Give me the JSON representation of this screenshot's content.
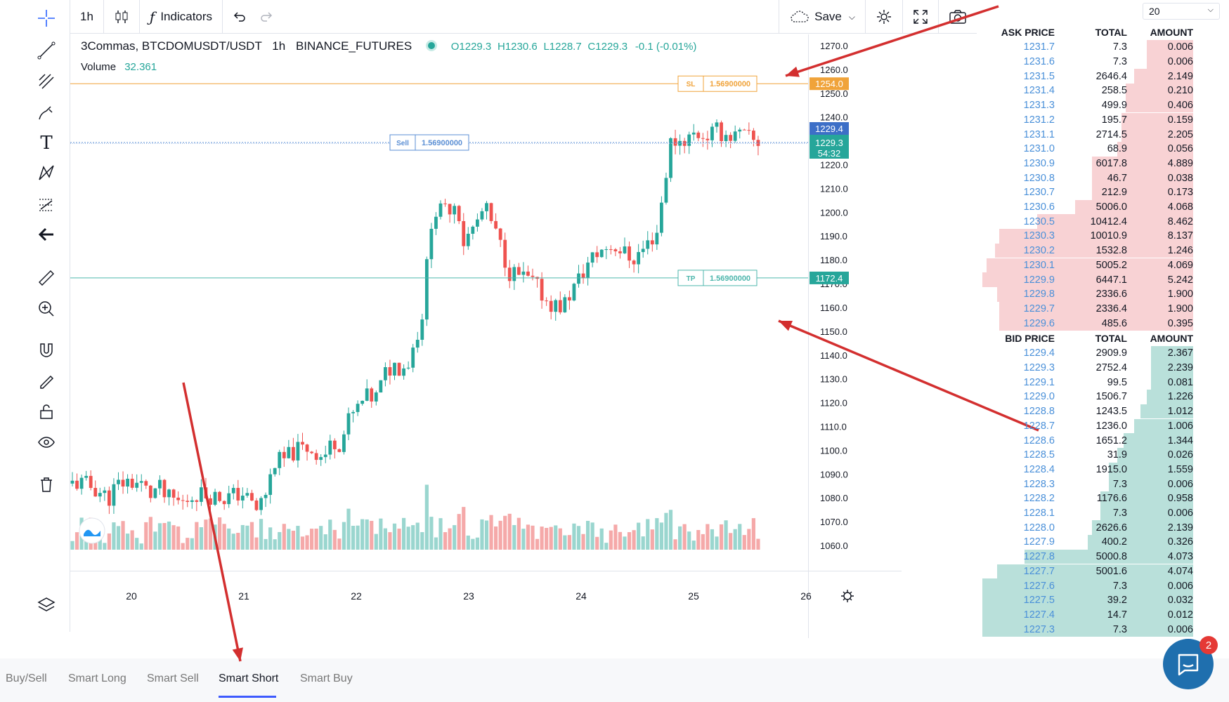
{
  "toolbar": {
    "interval": "1h",
    "indicators": "Indicators",
    "save": "Save",
    "depth": "20"
  },
  "legend": {
    "symbol": "3Commas, BTCDOMUSDT/USDT",
    "interval": "1h",
    "exchange": "BINANCE_FUTURES",
    "open": "O1229.3",
    "high": "H1230.6",
    "low": "L1228.7",
    "close": "C1229.3",
    "change": "-0.1 (-0.01%)",
    "volume_label": "Volume",
    "volume_value": "32.361"
  },
  "price_axis": {
    "ticks": [
      "1270.0",
      "1260.0",
      "1250.0",
      "1240.0",
      "1230.0",
      "1220.0",
      "1210.0",
      "1200.0",
      "1190.0",
      "1180.0",
      "1170.0",
      "1160.0",
      "1150.0",
      "1140.0",
      "1130.0",
      "1120.0",
      "1110.0",
      "1100.0",
      "1090.0",
      "1080.0",
      "1070.0",
      "1060.0"
    ],
    "sl_price": "1254.0",
    "ask_price": "1229.4",
    "last_price": "1229.3",
    "countdown": "54:32",
    "tp_price": "1172.4"
  },
  "time_axis": {
    "ticks": [
      "20",
      "21",
      "22",
      "23",
      "24",
      "25",
      "26"
    ]
  },
  "order_lines": {
    "sl_label": "SL",
    "sl_value": "1.56900000",
    "sell_label": "Sell",
    "sell_value": "1.56900000",
    "tp_label": "TP",
    "tp_value": "1.56900000"
  },
  "orderbook": {
    "ask_headers": [
      "ASK PRICE",
      "TOTAL",
      "AMOUNT"
    ],
    "bid_headers": [
      "BID PRICE",
      "TOTAL",
      "AMOUNT"
    ],
    "asks": [
      [
        "1231.7",
        "7.3",
        "0.006"
      ],
      [
        "1231.6",
        "7.3",
        "0.006"
      ],
      [
        "1231.5",
        "2646.4",
        "2.149"
      ],
      [
        "1231.4",
        "258.5",
        "0.210"
      ],
      [
        "1231.3",
        "499.9",
        "0.406"
      ],
      [
        "1231.2",
        "195.7",
        "0.159"
      ],
      [
        "1231.1",
        "2714.5",
        "2.205"
      ],
      [
        "1231.0",
        "68.9",
        "0.056"
      ],
      [
        "1230.9",
        "6017.8",
        "4.889"
      ],
      [
        "1230.8",
        "46.7",
        "0.038"
      ],
      [
        "1230.7",
        "212.9",
        "0.173"
      ],
      [
        "1230.6",
        "5006.0",
        "4.068"
      ],
      [
        "1230.5",
        "10412.4",
        "8.462"
      ],
      [
        "1230.3",
        "10010.9",
        "8.137"
      ],
      [
        "1230.2",
        "1532.8",
        "1.246"
      ],
      [
        "1230.1",
        "5005.2",
        "4.069"
      ],
      [
        "1229.9",
        "6447.1",
        "5.242"
      ],
      [
        "1229.8",
        "2336.6",
        "1.900"
      ],
      [
        "1229.7",
        "2336.4",
        "1.900"
      ],
      [
        "1229.6",
        "485.6",
        "0.395"
      ]
    ],
    "bids": [
      [
        "1229.4",
        "2909.9",
        "2.367"
      ],
      [
        "1229.3",
        "2752.4",
        "2.239"
      ],
      [
        "1229.1",
        "99.5",
        "0.081"
      ],
      [
        "1229.0",
        "1506.7",
        "1.226"
      ],
      [
        "1228.8",
        "1243.5",
        "1.012"
      ],
      [
        "1228.7",
        "1236.0",
        "1.006"
      ],
      [
        "1228.6",
        "1651.2",
        "1.344"
      ],
      [
        "1228.5",
        "31.9",
        "0.026"
      ],
      [
        "1228.4",
        "1915.0",
        "1.559"
      ],
      [
        "1228.3",
        "7.3",
        "0.006"
      ],
      [
        "1228.2",
        "1176.6",
        "0.958"
      ],
      [
        "1228.1",
        "7.3",
        "0.006"
      ],
      [
        "1228.0",
        "2626.6",
        "2.139"
      ],
      [
        "1227.9",
        "400.2",
        "0.326"
      ],
      [
        "1227.8",
        "5000.8",
        "4.073"
      ],
      [
        "1227.7",
        "5001.6",
        "4.074"
      ],
      [
        "1227.6",
        "7.3",
        "0.006"
      ],
      [
        "1227.5",
        "39.2",
        "0.032"
      ],
      [
        "1227.4",
        "14.7",
        "0.012"
      ],
      [
        "1227.3",
        "7.3",
        "0.006"
      ]
    ],
    "ask_depth": [
      0.22,
      0.22,
      0.28,
      0.32,
      0.32,
      0.34,
      0.34,
      0.36,
      0.48,
      0.48,
      0.48,
      0.56,
      0.74,
      0.92,
      0.94,
      0.98,
      1.0,
      0.93,
      0.92,
      0.92
    ],
    "bid_depth": [
      0.2,
      0.2,
      0.2,
      0.22,
      0.25,
      0.28,
      0.33,
      0.36,
      0.4,
      0.4,
      0.44,
      0.44,
      0.48,
      0.5,
      0.8,
      0.93,
      1.0,
      1.0,
      1.0,
      1.0
    ]
  },
  "bottom_tabs": [
    "Buy/Sell",
    "Smart Long",
    "Smart Sell",
    "Smart Short",
    "Smart Buy"
  ],
  "active_tab": "Smart Short",
  "chat": {
    "badge": "2"
  },
  "colors": {
    "up": "#26a69a",
    "down": "#ef5350",
    "sl": "#f0a33a",
    "tp": "#4db6ac",
    "sell": "#5b8fd4",
    "arrow": "#d32f2f"
  }
}
